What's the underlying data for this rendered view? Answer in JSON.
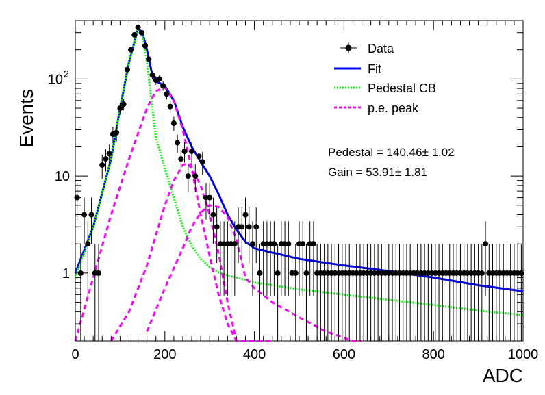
{
  "chart_data": {
    "type": "scatter",
    "xlabel": "ADC",
    "ylabel": "Events",
    "xlim": [
      0,
      1000
    ],
    "ylim": [
      0.2,
      400
    ],
    "yscale": "log",
    "xticks": [
      "0",
      "200",
      "400",
      "600",
      "800",
      "1000"
    ],
    "yticks": [
      {
        "value": 1,
        "label": "1",
        "sup": ""
      },
      {
        "value": 10,
        "label": "10",
        "sup": ""
      },
      {
        "value": 100,
        "label": "10",
        "sup": "2"
      }
    ],
    "legend": {
      "position": "top-right",
      "entries": [
        {
          "label": "Data",
          "style": "marker",
          "color": "#000000"
        },
        {
          "label": "Fit",
          "style": "solid",
          "color": "#0000ff"
        },
        {
          "label": "Pedestal CB",
          "style": "dotted",
          "color": "#00ff00"
        },
        {
          "label": "p.e. peak",
          "style": "dashed",
          "color": "#ff00ff"
        }
      ]
    },
    "annotations": [
      {
        "text": "Pedestal = 140.46± 1.02"
      },
      {
        "text": "Gain = 53.91± 1.81"
      }
    ],
    "series": [
      {
        "name": "Data",
        "style": "marker",
        "color": "#000000",
        "x": [
          4,
          12,
          20,
          28,
          36,
          44,
          52,
          60,
          68,
          76,
          84,
          92,
          100,
          108,
          116,
          124,
          132,
          140,
          148,
          156,
          164,
          172,
          180,
          188,
          196,
          204,
          212,
          220,
          228,
          236,
          244,
          252,
          260,
          268,
          276,
          284,
          292,
          300,
          308,
          316,
          324,
          332,
          340,
          348,
          356,
          364,
          372,
          380,
          388,
          396,
          404,
          412,
          420,
          428,
          436,
          444,
          452,
          460,
          468,
          476,
          484,
          492,
          500,
          508,
          516,
          524,
          532,
          540,
          548,
          556,
          564,
          572,
          580,
          588,
          596,
          604,
          612,
          620,
          628,
          636,
          644,
          652,
          660,
          668,
          676,
          684,
          692,
          700,
          708,
          716,
          724,
          732,
          740,
          748,
          756,
          764,
          772,
          780,
          788,
          796,
          804,
          812,
          820,
          828,
          836,
          844,
          852,
          860,
          868,
          876,
          884,
          892,
          900,
          908,
          916,
          924,
          932,
          940,
          948,
          956,
          964,
          972,
          980,
          988,
          996
        ],
        "y": [
          6,
          1,
          4,
          2,
          4,
          1,
          1,
          13,
          15,
          17,
          27,
          28,
          50,
          55,
          125,
          200,
          285,
          340,
          300,
          220,
          160,
          110,
          97,
          100,
          85,
          70,
          52,
          35,
          22,
          15,
          18,
          10,
          18,
          10,
          16,
          14,
          6,
          6,
          4,
          3,
          2,
          2,
          2,
          2,
          2,
          3,
          3,
          4,
          3,
          2,
          3,
          1,
          2,
          2,
          2,
          2,
          1,
          2,
          2,
          2,
          1,
          1,
          2,
          2,
          1,
          2,
          2,
          1,
          1,
          1,
          1,
          1,
          1,
          1,
          1,
          1,
          1,
          1,
          1,
          1,
          1,
          1,
          1,
          1,
          1,
          1,
          1,
          1,
          1,
          1,
          1,
          1,
          1,
          1,
          1,
          1,
          1,
          1,
          1,
          1,
          1,
          1,
          1,
          1,
          1,
          1,
          1,
          1,
          1,
          1,
          1,
          1,
          1,
          1,
          2,
          1,
          1,
          1,
          1,
          1,
          1,
          1,
          1,
          1,
          1
        ]
      },
      {
        "name": "Fit",
        "style": "solid",
        "color": "#0000ff",
        "x": [
          0,
          40,
          80,
          100,
          120,
          140,
          150,
          160,
          170,
          180,
          200,
          220,
          240,
          260,
          280,
          300,
          320,
          340,
          360,
          380,
          400,
          500,
          600,
          700,
          800,
          900,
          1000
        ],
        "y": [
          1,
          3,
          15,
          50,
          150,
          330,
          300,
          200,
          120,
          95,
          85,
          60,
          32,
          20,
          14,
          10,
          6.5,
          4,
          2.8,
          2.1,
          1.8,
          1.4,
          1.2,
          1.05,
          0.9,
          0.75,
          0.65
        ]
      },
      {
        "name": "Pedestal CB",
        "style": "dotted",
        "color": "#00ff00",
        "x": [
          0,
          40,
          80,
          100,
          120,
          140,
          150,
          160,
          170,
          180,
          200,
          220,
          240,
          260,
          280,
          300,
          320,
          340,
          360,
          380,
          400,
          500,
          600,
          700,
          800,
          900,
          1000
        ],
        "y": [
          0.9,
          3,
          15,
          50,
          150,
          330,
          280,
          150,
          60,
          25,
          12,
          6,
          3,
          1.9,
          1.4,
          1.15,
          1.02,
          0.95,
          0.9,
          0.85,
          0.8,
          0.68,
          0.6,
          0.53,
          0.47,
          0.41,
          0.37
        ]
      },
      {
        "name": "p.e. peak 1",
        "style": "dashed",
        "color": "#ff00ff",
        "x": [
          0,
          40,
          80,
          120,
          160,
          180,
          200,
          220,
          240,
          260,
          280,
          300,
          320,
          340,
          360,
          380,
          400
        ],
        "y": [
          0.2,
          0.9,
          4,
          15,
          50,
          75,
          82,
          60,
          30,
          12,
          4,
          1.5,
          0.6,
          0.3,
          0.2,
          0.2,
          0.2
        ]
      },
      {
        "name": "p.e. peak 2",
        "style": "dashed",
        "color": "#ff00ff",
        "x": [
          80,
          120,
          160,
          200,
          220,
          240,
          250,
          260,
          280,
          300,
          320,
          340,
          360,
          380,
          400,
          440
        ],
        "y": [
          0.2,
          0.4,
          1.2,
          5,
          9,
          13,
          13.5,
          12,
          8,
          4,
          1.6,
          0.5,
          0.2,
          0.2,
          0.2,
          0.2
        ]
      },
      {
        "name": "p.e. peak 3",
        "style": "dashed",
        "color": "#ff00ff",
        "x": [
          160,
          200,
          240,
          260,
          280,
          300,
          320,
          340,
          360,
          380,
          400,
          440,
          500,
          560,
          620,
          640
        ],
        "y": [
          0.25,
          0.7,
          1.8,
          3,
          4.2,
          5,
          4.8,
          3.8,
          2.2,
          0.9,
          0.7,
          0.5,
          0.35,
          0.25,
          0.2,
          0.2
        ]
      }
    ]
  }
}
